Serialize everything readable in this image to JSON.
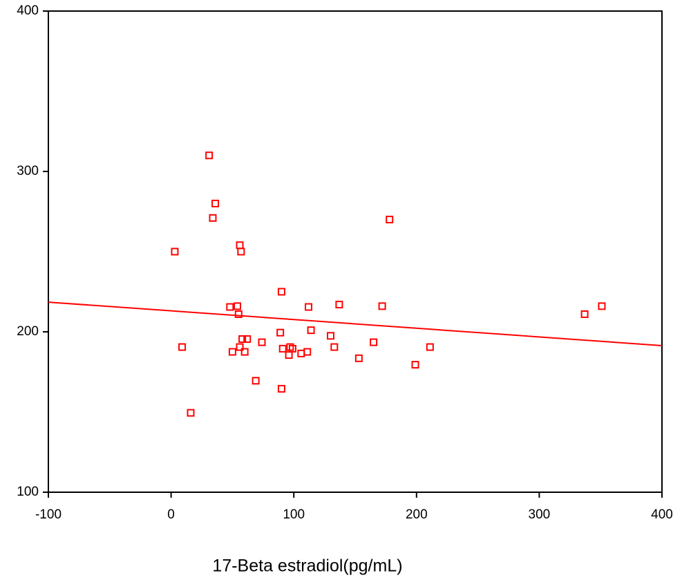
{
  "chart_data": {
    "type": "scatter",
    "x_label": "17-Beta estradiol(pg/mL)",
    "xlim": [
      -100,
      400
    ],
    "xticks": [
      -100,
      0,
      100,
      200,
      300,
      400
    ],
    "ylim": [
      100,
      400
    ],
    "yticks": [
      100,
      200,
      300,
      400
    ],
    "color": "#ff0000",
    "x": [
      31,
      36,
      34,
      3,
      56,
      57,
      178,
      90,
      48,
      54,
      55,
      112,
      137,
      172,
      337,
      351,
      114,
      89,
      130,
      165,
      133,
      74,
      58,
      62,
      9,
      56,
      50,
      60,
      91,
      97,
      99,
      96,
      106,
      111,
      153,
      199,
      211,
      69,
      90,
      16
    ],
    "y": [
      310,
      280,
      271,
      250,
      254,
      250,
      270,
      225,
      215.5,
      216,
      211,
      215.5,
      217,
      216,
      211,
      216,
      201,
      199.5,
      197.5,
      193.5,
      190.5,
      193.5,
      195.5,
      195.5,
      190.5,
      190.5,
      187.5,
      187.5,
      189.5,
      190.5,
      189.5,
      185.5,
      186.5,
      187.5,
      183.5,
      179.5,
      190.5,
      169.5,
      164.5,
      149.5
    ],
    "fit_line": {
      "x": [
        -100,
        400
      ],
      "y": [
        218.5,
        191.4
      ]
    }
  }
}
